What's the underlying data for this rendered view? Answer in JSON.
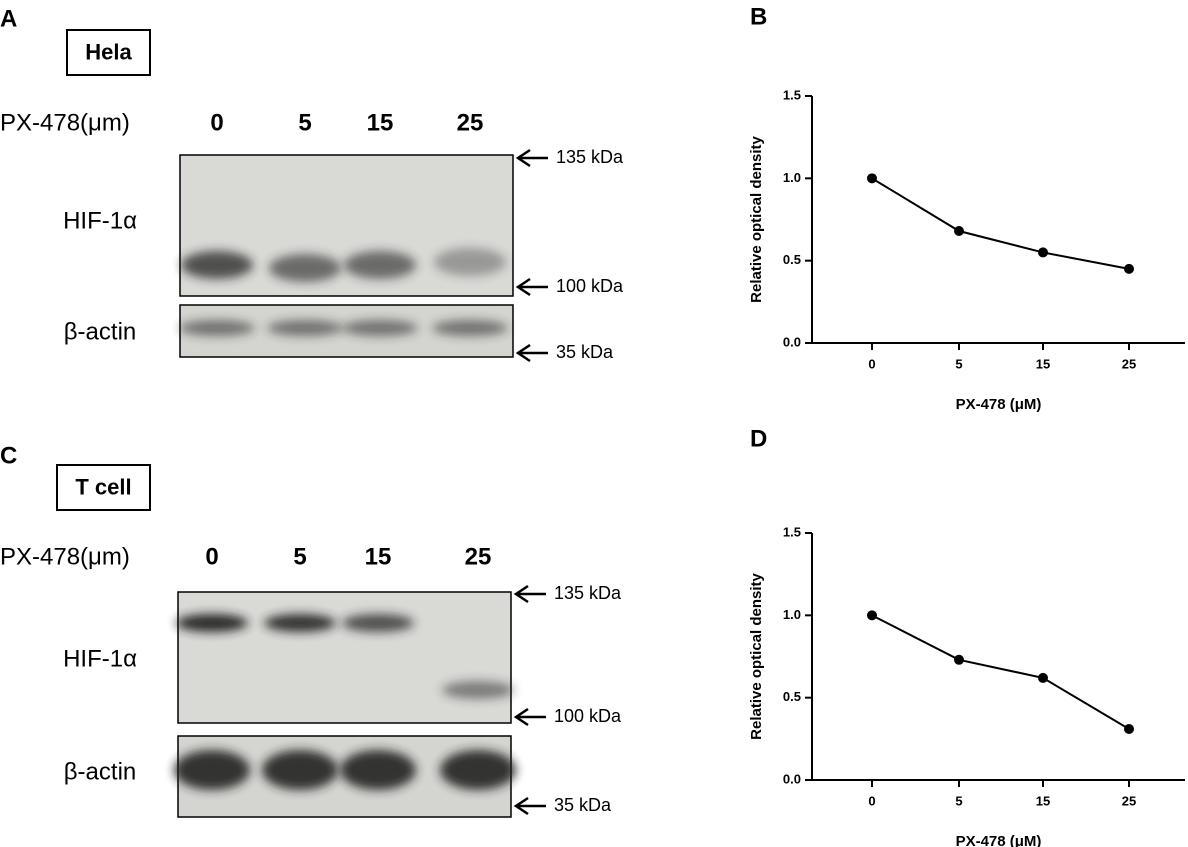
{
  "panels": [
    {
      "letter": "A",
      "cell": "Hela",
      "treatment": "PX-478(μm)",
      "lanes": [
        "0",
        "5",
        "15",
        "25"
      ],
      "rows": [
        "HIF-1α",
        "β-actin"
      ],
      "markers": [
        "135 kDa",
        "100 kDa",
        "35 kDa"
      ]
    },
    {
      "letter": "C",
      "cell": "T cell",
      "treatment": "PX-478(μm)",
      "lanes": [
        "0",
        "5",
        "15",
        "25"
      ],
      "rows": [
        "HIF-1α",
        "β-actin"
      ],
      "markers": [
        "135 kDa",
        "100 kDa",
        "35 kDa"
      ]
    }
  ],
  "chart_data": [
    {
      "type": "line",
      "panel_label": "B",
      "x_label": "PX-478 (μM)",
      "y_label": "Relative optical density",
      "categories": [
        "0",
        "5",
        "15",
        "25"
      ],
      "values": [
        1.0,
        0.68,
        0.55,
        0.45
      ],
      "color": "#000000",
      "ylim": [
        0,
        1.5
      ],
      "yticks": [
        {
          "value": 0,
          "label": "0.0"
        },
        {
          "value": 0.5,
          "label": "0.5"
        },
        {
          "value": 1,
          "label": "1.0"
        },
        {
          "value": 1.5,
          "label": "1.5"
        }
      ]
    },
    {
      "type": "line",
      "panel_label": "D",
      "x_label": "PX-478 (μM)",
      "y_label": "Relative optical density",
      "categories": [
        "0",
        "5",
        "15",
        "25"
      ],
      "values": [
        1.0,
        0.73,
        0.62,
        0.31
      ],
      "color": "#000000",
      "ylim": [
        0,
        1.5
      ],
      "yticks": [
        {
          "value": 0,
          "label": "0.0"
        },
        {
          "value": 0.5,
          "label": "0.5"
        },
        {
          "value": 1,
          "label": "1.0"
        },
        {
          "value": 1.5,
          "label": "1.5"
        }
      ]
    }
  ]
}
